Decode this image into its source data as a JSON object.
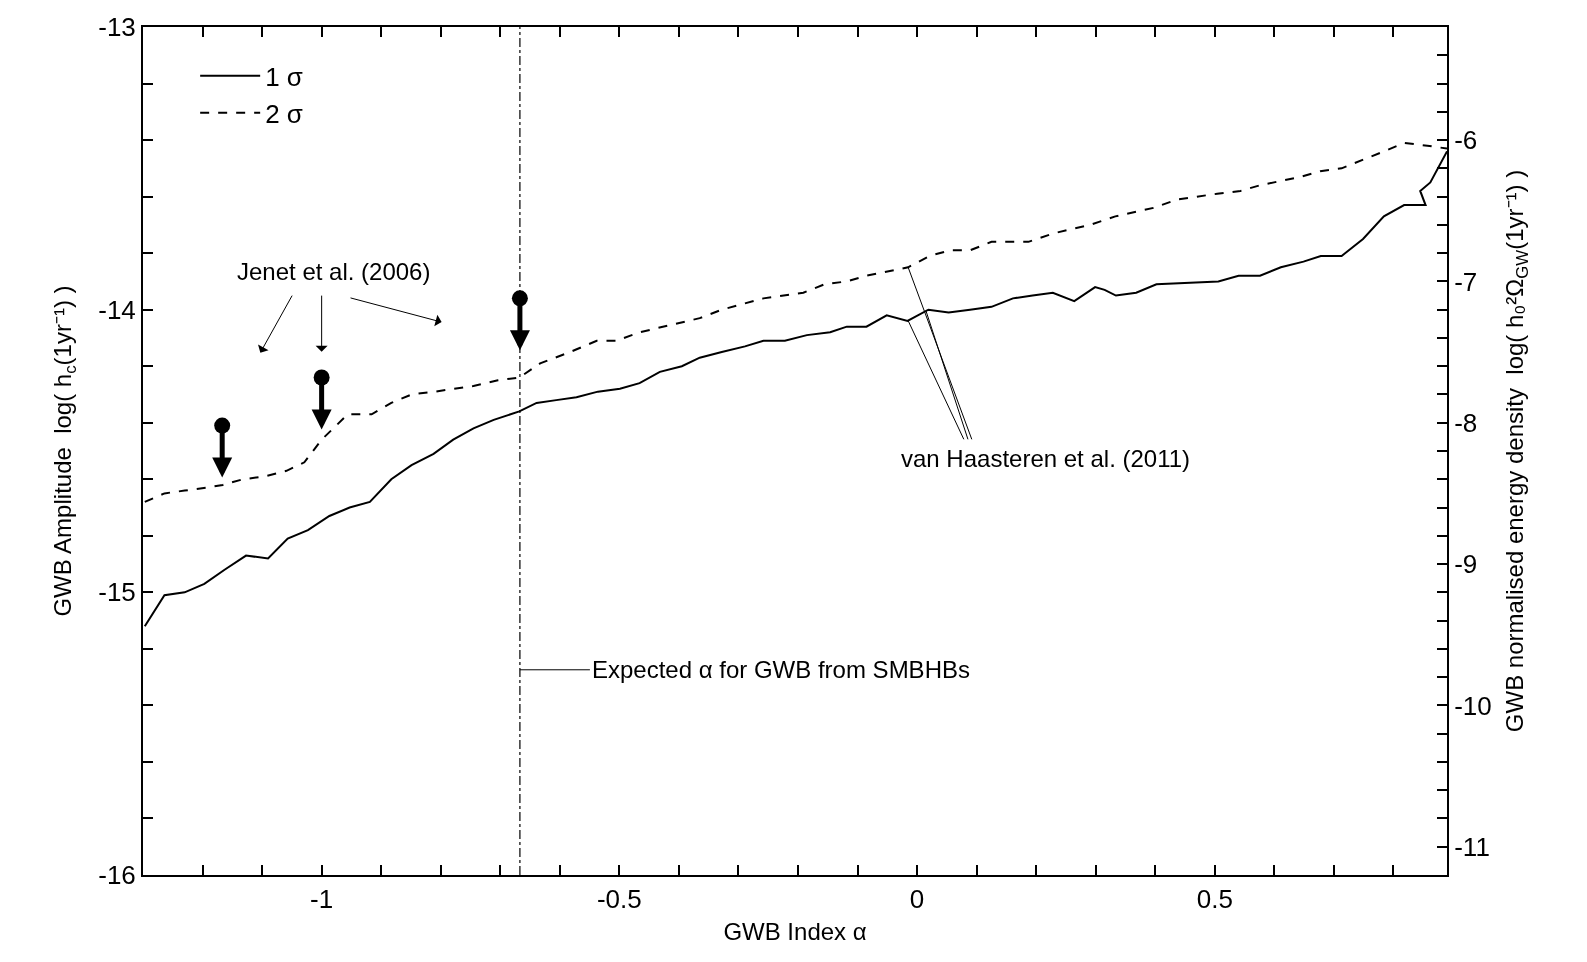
{
  "chart_data": {
    "type": "line",
    "xlabel": "GWB Index α",
    "ylabel": "GWB Amplitude  log( h$_{c}$(1yr⁻¹) )",
    "y2label": "GWB normalised energy density  log( h₀²Ω$_{GW}$(1yr⁻¹) )",
    "xlim": [
      -1.3,
      0.89
    ],
    "xticks": [
      {
        "value": -1.2,
        "label": null
      },
      {
        "value": -1.1,
        "label": null
      },
      -1,
      {
        "value": -0.9,
        "label": null
      },
      {
        "value": -0.8,
        "label": null
      },
      {
        "value": -0.7,
        "label": null
      },
      {
        "value": -0.6,
        "label": null
      },
      -0.5,
      {
        "value": -0.4,
        "label": null
      },
      {
        "value": -0.3,
        "label": null
      },
      {
        "value": -0.2,
        "label": null
      },
      {
        "value": -0.1,
        "label": null
      },
      0,
      {
        "value": 0.1,
        "label": null
      },
      {
        "value": 0.2,
        "label": null
      },
      {
        "value": 0.3,
        "label": null
      },
      {
        "value": 0.4,
        "label": null
      },
      0.5,
      {
        "value": 0.6,
        "label": null
      },
      {
        "value": 0.7,
        "label": null
      },
      {
        "value": 0.8,
        "label": null
      }
    ],
    "ylim": [
      -16,
      -13
    ],
    "yticks": [
      -16,
      {
        "value": -15.8,
        "label": null
      },
      {
        "value": -15.6,
        "label": null
      },
      {
        "value": -15.4,
        "label": null
      },
      {
        "value": -15.2,
        "label": null
      },
      -15,
      {
        "value": -14.8,
        "label": null
      },
      {
        "value": -14.6,
        "label": null
      },
      {
        "value": -14.4,
        "label": null
      },
      {
        "value": -14.2,
        "label": null
      },
      -14,
      {
        "value": -13.8,
        "label": null
      },
      {
        "value": -13.6,
        "label": null
      },
      {
        "value": -13.4,
        "label": null
      },
      {
        "value": -13.2,
        "label": null
      },
      -13
    ],
    "y2lim": [
      -11.2,
      -5.2
    ],
    "y2ticks": [
      -11,
      {
        "value": -10.8,
        "label": null
      },
      {
        "value": -10.6,
        "label": null
      },
      {
        "value": -10.4,
        "label": null
      },
      {
        "value": -10.2,
        "label": null
      },
      -10,
      {
        "value": -9.8,
        "label": null
      },
      {
        "value": -9.6,
        "label": null
      },
      {
        "value": -9.4,
        "label": null
      },
      {
        "value": -9.2,
        "label": null
      },
      -9,
      {
        "value": -8.8,
        "label": null
      },
      {
        "value": -8.6,
        "label": null
      },
      {
        "value": -8.4,
        "label": null
      },
      {
        "value": -8.2,
        "label": null
      },
      -8,
      {
        "value": -7.8,
        "label": null
      },
      {
        "value": -7.6,
        "label": null
      },
      {
        "value": -7.4,
        "label": null
      },
      {
        "value": -7.2,
        "label": null
      },
      -7,
      {
        "value": -6.8,
        "label": null
      },
      {
        "value": -6.6,
        "label": null
      },
      {
        "value": -6.4,
        "label": null
      },
      {
        "value": -6.2,
        "label": null
      },
      -6,
      {
        "value": -5.8,
        "label": null
      },
      {
        "value": -5.6,
        "label": null
      },
      {
        "value": -5.4,
        "label": null
      }
    ],
    "legend": "top left",
    "marker": "none",
    "series": [
      {
        "name": "1 σ",
        "color": "#000000",
        "line_style": "solid",
        "x": [
          -1.297,
          -1.264,
          -1.23,
          -1.197,
          -1.163,
          -1.127,
          -1.09,
          -1.057,
          -1.023,
          -0.987,
          -0.953,
          -0.919,
          -0.883,
          -0.849,
          -0.812,
          -0.779,
          -0.745,
          -0.711,
          -0.668,
          -0.639,
          -0.606,
          -0.572,
          -0.536,
          -0.499,
          -0.466,
          -0.432,
          -0.395,
          -0.365,
          -0.328,
          -0.289,
          -0.258,
          -0.222,
          -0.185,
          -0.146,
          -0.118,
          -0.085,
          -0.051,
          -0.016,
          0.019,
          0.053,
          0.089,
          0.125,
          0.161,
          0.194,
          0.228,
          0.264,
          0.299,
          0.315,
          0.334,
          0.368,
          0.402,
          0.506,
          0.54,
          0.576,
          0.611,
          0.649,
          0.678,
          0.713,
          0.749,
          0.784,
          0.818,
          0.854,
          0.845,
          0.862,
          0.89
        ],
        "values": [
          -15.12,
          -15.01,
          -15.0,
          -14.97,
          -14.92,
          -14.87,
          -14.88,
          -14.81,
          -14.78,
          -14.73,
          -14.7,
          -14.68,
          -14.6,
          -14.55,
          -14.51,
          -14.46,
          -14.42,
          -14.39,
          -14.36,
          -14.33,
          -14.32,
          -14.31,
          -14.29,
          -14.28,
          -14.26,
          -14.22,
          -14.2,
          -14.17,
          -14.15,
          -14.13,
          -14.11,
          -14.11,
          -14.09,
          -14.08,
          -14.06,
          -14.06,
          -14.02,
          -14.04,
          -14.0,
          -14.01,
          -14.0,
          -13.99,
          -13.96,
          -13.95,
          -13.94,
          -13.97,
          -13.92,
          -13.93,
          -13.95,
          -13.94,
          -13.91,
          -13.9,
          -13.88,
          -13.88,
          -13.85,
          -13.83,
          -13.81,
          -13.81,
          -13.75,
          -13.67,
          -13.63,
          -13.63,
          -13.58,
          -13.55,
          -13.44
        ]
      },
      {
        "name": "2 σ",
        "color": "#000000",
        "line_style": "dashed",
        "x": [
          -1.297,
          -1.264,
          -1.23,
          -1.194,
          -1.166,
          -1.132,
          -1.096,
          -1.059,
          -1.029,
          -1.0,
          -0.956,
          -0.916,
          -0.883,
          -0.849,
          -0.81,
          -0.745,
          -0.704,
          -0.668,
          -0.633,
          -0.583,
          -0.538,
          -0.505,
          -0.466,
          -0.365,
          -0.328,
          -0.258,
          -0.191,
          -0.155,
          -0.118,
          -0.085,
          -0.015,
          0.021,
          0.055,
          0.089,
          0.125,
          0.187,
          0.229,
          0.291,
          0.333,
          0.397,
          0.437,
          0.504,
          0.543,
          0.576,
          0.644,
          0.677,
          0.713,
          0.784,
          0.818,
          0.857,
          0.89
        ],
        "values": [
          -14.68,
          -14.65,
          -14.64,
          -14.63,
          -14.62,
          -14.6,
          -14.59,
          -14.57,
          -14.54,
          -14.46,
          -14.37,
          -14.37,
          -14.33,
          -14.3,
          -14.29,
          -14.27,
          -14.25,
          -14.24,
          -14.19,
          -14.15,
          -14.11,
          -14.11,
          -14.08,
          -14.03,
          -14.0,
          -13.96,
          -13.94,
          -13.91,
          -13.9,
          -13.88,
          -13.85,
          -13.81,
          -13.79,
          -13.79,
          -13.76,
          -13.76,
          -13.73,
          -13.7,
          -13.67,
          -13.64,
          -13.61,
          -13.59,
          -13.58,
          -13.56,
          -13.53,
          -13.51,
          -13.5,
          -13.44,
          -13.41,
          -13.42,
          -13.43
        ]
      },
      {
        "color": "#000000",
        "type": "scatter",
        "marker": "circle",
        "x": [
          -1.167,
          -1.0,
          -0.667
        ],
        "values": [
          -14.41,
          -14.24,
          -13.96
        ]
      }
    ],
    "ref_lines": [
      {
        "axis": "x",
        "value": -0.667,
        "label": "Expected α for GWB from SMBHBs",
        "color": "#000000",
        "line_style": "dashdot"
      }
    ],
    "annotations": [
      "Jenet et al. (2006)",
      {
        "text": "van Haasteren et al. (2011)",
        "x": -0.015,
        "y": -13.85
      }
    ]
  }
}
